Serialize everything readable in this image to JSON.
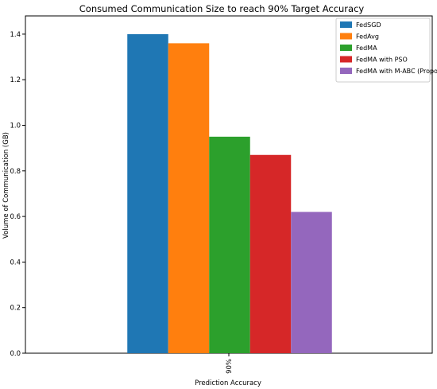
{
  "chart_data": {
    "type": "bar",
    "title": "Consumed Communication Size to reach 90% Target Accuracy",
    "xlabel": "Prediction Accuracy",
    "ylabel": "Volume of Communication (GB)",
    "categories": [
      "90%"
    ],
    "series": [
      {
        "name": "FedSGD",
        "color": "#1f77b4",
        "values": [
          1.4
        ]
      },
      {
        "name": "FedAvg",
        "color": "#ff7f0e",
        "values": [
          1.36
        ]
      },
      {
        "name": "FedMA",
        "color": "#2ca02c",
        "values": [
          0.95
        ]
      },
      {
        "name": "FedMA with PSO",
        "color": "#d62728",
        "values": [
          0.87
        ]
      },
      {
        "name": "FedMA with M-ABC (Proposed)",
        "color": "#9467bd",
        "values": [
          0.62
        ]
      }
    ],
    "ylim": [
      0,
      1.48
    ],
    "yticks": [
      "0.0",
      "0.2",
      "0.4",
      "0.6",
      "0.8",
      "1.0",
      "1.2",
      "1.4"
    ],
    "grid": false,
    "legend_position": "top-right"
  }
}
